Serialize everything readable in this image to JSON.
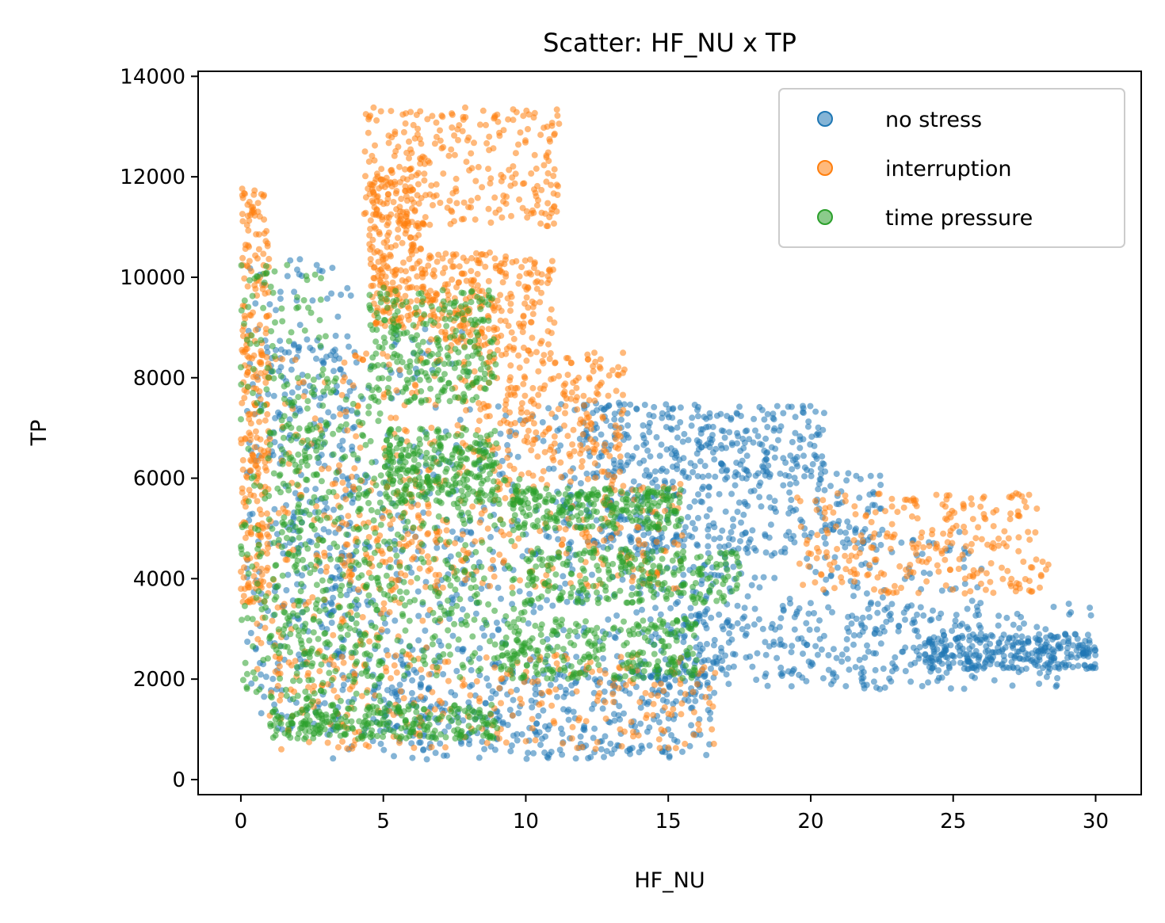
{
  "chart_data": {
    "type": "scatter",
    "title": "Scatter: HF_NU x TP",
    "xlabel": "HF_NU",
    "ylabel": "TP",
    "xlim": [
      -1.5,
      31.6
    ],
    "ylim": [
      -300,
      14100
    ],
    "xticks": [
      0,
      5,
      10,
      15,
      20,
      25,
      30
    ],
    "yticks": [
      0,
      2000,
      4000,
      6000,
      8000,
      10000,
      12000,
      14000
    ],
    "grid": false,
    "legend_position": "top-right",
    "series": [
      {
        "name": "no stress",
        "color": "#1f77b4",
        "clusters": [
          {
            "x": [
              0.2,
              4.0
            ],
            "y": [
              1200,
              10400
            ]
          },
          {
            "x": [
              1.0,
              8.0
            ],
            "y": [
              900,
              9000
            ]
          },
          {
            "x": [
              3.0,
              16.5
            ],
            "y": [
              400,
              5000
            ]
          },
          {
            "x": [
              5.0,
              16.5
            ],
            "y": [
              400,
              2200
            ]
          },
          {
            "x": [
              8.0,
              17.5
            ],
            "y": [
              1500,
              7500
            ]
          },
          {
            "x": [
              12.0,
              20.5
            ],
            "y": [
              6000,
              7500
            ]
          },
          {
            "x": [
              11.0,
              22.5
            ],
            "y": [
              4500,
              6200
            ]
          },
          {
            "x": [
              14.0,
              26.0
            ],
            "y": [
              2000,
              5000
            ]
          },
          {
            "x": [
              15.0,
              30.0
            ],
            "y": [
              1800,
              3500
            ]
          },
          {
            "x": [
              24.0,
              30.0
            ],
            "y": [
              2200,
              2900
            ]
          }
        ]
      },
      {
        "name": "interruption",
        "color": "#ff7f0e",
        "clusters": [
          {
            "x": [
              0.0,
              1.0
            ],
            "y": [
              3500,
              11800
            ]
          },
          {
            "x": [
              4.3,
              11.2
            ],
            "y": [
              11000,
              13400
            ]
          },
          {
            "x": [
              4.5,
              6.5
            ],
            "y": [
              9000,
              12200
            ]
          },
          {
            "x": [
              6.5,
              11.0
            ],
            "y": [
              8500,
              10500
            ]
          },
          {
            "x": [
              7.5,
              13.5
            ],
            "y": [
              6000,
              8500
            ]
          },
          {
            "x": [
              0.5,
              7.0
            ],
            "y": [
              2000,
              8500
            ]
          },
          {
            "x": [
              3.5,
              15.5
            ],
            "y": [
              3800,
              6000
            ]
          },
          {
            "x": [
              1.0,
              16.8
            ],
            "y": [
              600,
              2500
            ]
          },
          {
            "x": [
              19.5,
              28.5
            ],
            "y": [
              3700,
              5700
            ]
          }
        ]
      },
      {
        "name": "time pressure",
        "color": "#2ca02c",
        "clusters": [
          {
            "x": [
              0.0,
              3.0
            ],
            "y": [
              1600,
              10300
            ]
          },
          {
            "x": [
              1.5,
              5.0
            ],
            "y": [
              1000,
              8000
            ]
          },
          {
            "x": [
              4.5,
              9.0
            ],
            "y": [
              7500,
              9800
            ]
          },
          {
            "x": [
              5.0,
              9.0
            ],
            "y": [
              5500,
              7000
            ]
          },
          {
            "x": [
              4.0,
              10.0
            ],
            "y": [
              2000,
              6000
            ]
          },
          {
            "x": [
              9.5,
              15.5
            ],
            "y": [
              5000,
              5800
            ]
          },
          {
            "x": [
              10.0,
              17.5
            ],
            "y": [
              3500,
              4600
            ]
          },
          {
            "x": [
              9.0,
              16.0
            ],
            "y": [
              2000,
              3200
            ]
          },
          {
            "x": [
              1.0,
              9.0
            ],
            "y": [
              800,
              1500
            ]
          }
        ]
      }
    ]
  }
}
